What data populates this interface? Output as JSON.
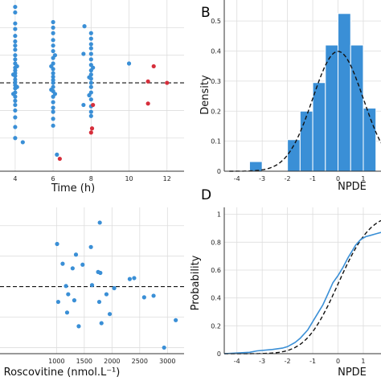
{
  "colors": {
    "point": "#3a8fd6",
    "point_outlier": "#d62e3b",
    "bar": "#3a8fd6",
    "bar_edge": "#ffffff",
    "grid": "#dddddd",
    "reference": "#111111",
    "ecdf": "#3a8fd6"
  },
  "chart_data": [
    {
      "panel": "",
      "type": "scatter",
      "xlabel": "Time (h)",
      "ylabel": "",
      "xlim": [
        3.2,
        12.9
      ],
      "ylim": [
        -3.2,
        3.0
      ],
      "xticks": [
        "4",
        "6",
        "8",
        "10",
        "12"
      ],
      "xtick_values": [
        4,
        6,
        8,
        10,
        12
      ],
      "reference_line_y": 0,
      "grid": true,
      "series": [
        {
          "color_key": "point",
          "points": [
            [
              4,
              2.75
            ],
            [
              4,
              2.55
            ],
            [
              4,
              2.15
            ],
            [
              4,
              1.95
            ],
            [
              4,
              1.7
            ],
            [
              4,
              1.5
            ],
            [
              4,
              1.35
            ],
            [
              4,
              1.2
            ],
            [
              4,
              1.0
            ],
            [
              4,
              0.85
            ],
            [
              4,
              0.7
            ],
            [
              4,
              0.55
            ],
            [
              4,
              0.45
            ],
            [
              4,
              0.35
            ],
            [
              4,
              0.25
            ],
            [
              4,
              0.12
            ],
            [
              4,
              0.02
            ],
            [
              4,
              -0.08
            ],
            [
              4,
              -0.2
            ],
            [
              4,
              -0.35
            ],
            [
              4,
              -0.5
            ],
            [
              4,
              -0.65
            ],
            [
              4,
              -0.8
            ],
            [
              4,
              -1.0
            ],
            [
              4,
              -1.25
            ],
            [
              4,
              -1.6
            ],
            [
              4,
              -2.0
            ],
            [
              3.9,
              0.3
            ],
            [
              3.9,
              -0.4
            ],
            [
              4.1,
              0.6
            ],
            [
              4.1,
              -0.15
            ],
            [
              4.4,
              -2.15
            ],
            [
              6,
              2.2
            ],
            [
              6,
              2.0
            ],
            [
              6,
              1.8
            ],
            [
              6,
              1.55
            ],
            [
              6,
              1.35
            ],
            [
              6,
              1.15
            ],
            [
              6,
              0.9
            ],
            [
              6,
              0.7
            ],
            [
              6,
              0.5
            ],
            [
              6,
              0.35
            ],
            [
              6,
              0.22
            ],
            [
              6,
              0.1
            ],
            [
              6,
              0.0
            ],
            [
              6,
              -0.15
            ],
            [
              6,
              -0.3
            ],
            [
              6,
              -0.5
            ],
            [
              6,
              -0.7
            ],
            [
              6,
              -0.9
            ],
            [
              6,
              -1.05
            ],
            [
              6,
              -1.3
            ],
            [
              6,
              -1.55
            ],
            [
              5.9,
              0.6
            ],
            [
              5.9,
              -0.25
            ],
            [
              6.1,
              1.0
            ],
            [
              6.1,
              -0.4
            ],
            [
              6.2,
              -2.6
            ],
            [
              8,
              1.8
            ],
            [
              8,
              1.6
            ],
            [
              8,
              1.4
            ],
            [
              8,
              1.25
            ],
            [
              8,
              1.05
            ],
            [
              8,
              0.85
            ],
            [
              8,
              0.65
            ],
            [
              8,
              0.45
            ],
            [
              8,
              0.3
            ],
            [
              8,
              0.15
            ],
            [
              8,
              0.0
            ],
            [
              8,
              -0.15
            ],
            [
              8,
              -0.35
            ],
            [
              8,
              -0.6
            ],
            [
              8,
              -0.85
            ],
            [
              8,
              -1.05
            ],
            [
              8,
              -1.2
            ],
            [
              7.9,
              0.2
            ],
            [
              7.9,
              -0.45
            ],
            [
              8.1,
              0.55
            ],
            [
              7.6,
              1.05
            ],
            [
              7.65,
              2.05
            ],
            [
              7.6,
              -0.8
            ],
            [
              10,
              0.7
            ]
          ],
          "name": ""
        },
        {
          "color_key": "point_outlier",
          "points": [
            [
              6.35,
              -2.75
            ],
            [
              8.1,
              -0.8
            ],
            [
              8.05,
              -1.65
            ],
            [
              8.0,
              -1.8
            ],
            [
              11.0,
              0.05
            ],
            [
              11.0,
              -0.75
            ],
            [
              11.3,
              0.6
            ],
            [
              12.0,
              0.0
            ]
          ],
          "name": ""
        }
      ]
    },
    {
      "panel": "B",
      "type": "bar",
      "xlabel": "NPDE",
      "ylabel": "Density",
      "xlim": [
        -4.5,
        1.7
      ],
      "ylim": [
        0,
        0.57
      ],
      "xticks": [
        "-4",
        "-3",
        "-2",
        "-1",
        "0",
        "1"
      ],
      "xtick_values": [
        -4,
        -3,
        -2,
        -1,
        0,
        1
      ],
      "yticks": [
        "0",
        "0.1",
        "0.2",
        "0.3",
        "0.4",
        "0.5"
      ],
      "ytick_values": [
        0,
        0.1,
        0.2,
        0.3,
        0.4,
        0.5
      ],
      "bins": [
        {
          "x0": -3.5,
          "x1": -3.0,
          "value": 0.032
        },
        {
          "x0": -3.0,
          "x1": -2.5,
          "value": 0.0
        },
        {
          "x0": -2.5,
          "x1": -2.0,
          "value": 0.0
        },
        {
          "x0": -2.0,
          "x1": -1.5,
          "value": 0.105
        },
        {
          "x0": -1.5,
          "x1": -1.0,
          "value": 0.2
        },
        {
          "x0": -1.0,
          "x1": -0.5,
          "value": 0.295
        },
        {
          "x0": -0.5,
          "x1": 0.0,
          "value": 0.42
        },
        {
          "x0": 0.0,
          "x1": 0.5,
          "value": 0.525
        },
        {
          "x0": 0.5,
          "x1": 1.0,
          "value": 0.42
        },
        {
          "x0": 1.0,
          "x1": 1.5,
          "value": 0.21
        }
      ],
      "reference_curve": "standard-normal-density",
      "grid": true
    },
    {
      "panel": "",
      "type": "scatter",
      "xlabel": "Roscovitine (nmol.L⁻¹)",
      "ylabel": "",
      "xlim": [
        -20,
        3300
      ],
      "ylim": [
        -2.2,
        2.6
      ],
      "xticks": [
        "1000",
        "1500",
        "2000",
        "2500",
        "3000"
      ],
      "xtick_values": [
        1000,
        1500,
        2000,
        2500,
        3000
      ],
      "reference_line_y": 0,
      "grid": true,
      "series": [
        {
          "color_key": "point",
          "points": [
            [
              1780,
              2.1
            ],
            [
              1010,
              1.4
            ],
            [
              1350,
              1.05
            ],
            [
              1620,
              1.3
            ],
            [
              1110,
              0.75
            ],
            [
              1290,
              0.6
            ],
            [
              1470,
              0.72
            ],
            [
              1750,
              0.48
            ],
            [
              1790,
              0.45
            ],
            [
              2320,
              0.25
            ],
            [
              2400,
              0.28
            ],
            [
              1170,
              0.02
            ],
            [
              1640,
              0.05
            ],
            [
              2040,
              -0.05
            ],
            [
              1210,
              -0.25
            ],
            [
              1900,
              -0.25
            ],
            [
              1030,
              -0.5
            ],
            [
              1320,
              -0.45
            ],
            [
              1770,
              -0.5
            ],
            [
              2580,
              -0.35
            ],
            [
              2750,
              -0.3
            ],
            [
              1190,
              -0.85
            ],
            [
              1810,
              -1.2
            ],
            [
              1960,
              -0.9
            ],
            [
              3150,
              -1.1
            ],
            [
              1400,
              -1.3
            ],
            [
              2940,
              -2.0
            ]
          ],
          "name": ""
        }
      ]
    },
    {
      "panel": "D",
      "type": "line",
      "xlabel": "NPDE",
      "ylabel": "Probability",
      "xlim": [
        -4.5,
        1.7
      ],
      "ylim": [
        0,
        1.05
      ],
      "xticks": [
        "-4",
        "-3",
        "-2",
        "-1",
        "0",
        "1"
      ],
      "xtick_values": [
        -4,
        -3,
        -2,
        -1,
        0,
        1
      ],
      "yticks": [
        "0",
        "0.2",
        "0.4",
        "0.6",
        "0.8",
        "1"
      ],
      "ytick_values": [
        0,
        0.2,
        0.4,
        0.6,
        0.8,
        1
      ],
      "series": [
        {
          "color_key": "ecdf",
          "name": "",
          "x": [
            -4.5,
            -3.5,
            -3.2,
            -2.6,
            -2.2,
            -2.0,
            -1.7,
            -1.5,
            -1.2,
            -1.0,
            -0.8,
            -0.6,
            -0.4,
            -0.2,
            0.0,
            0.2,
            0.4,
            0.5,
            0.7,
            0.9,
            1.1,
            1.3,
            1.5,
            1.7
          ],
          "y": [
            0,
            0.01,
            0.02,
            0.03,
            0.04,
            0.05,
            0.08,
            0.11,
            0.17,
            0.23,
            0.29,
            0.35,
            0.43,
            0.51,
            0.56,
            0.62,
            0.69,
            0.72,
            0.78,
            0.82,
            0.84,
            0.85,
            0.86,
            0.87
          ]
        },
        {
          "color_key": "reference",
          "name": "",
          "style": "dashed",
          "curve": "standard-normal-cdf"
        }
      ],
      "grid": true
    }
  ]
}
